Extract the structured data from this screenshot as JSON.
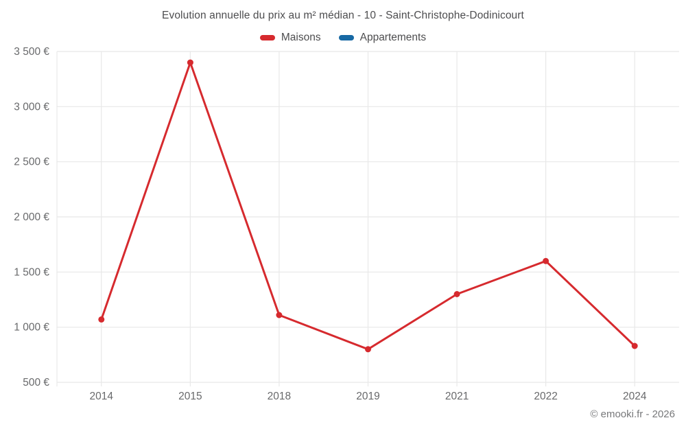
{
  "header": {
    "title": "Evolution annuelle du prix au m² médian - 10 - Saint-Christophe-Dodinicourt"
  },
  "legend": {
    "items": [
      {
        "label": "Maisons",
        "color": "#d62a2e"
      },
      {
        "label": "Appartements",
        "color": "#1769a4"
      }
    ]
  },
  "chart_data": {
    "type": "line",
    "title": "Evolution annuelle du prix au m² médian - 10 - Saint-Christophe-Dodinicourt",
    "categories": [
      "2014",
      "2015",
      "2018",
      "2019",
      "2021",
      "2022",
      "2024"
    ],
    "series": [
      {
        "name": "Maisons",
        "color": "#d62a2e",
        "values": [
          1070,
          3400,
          1110,
          800,
          1300,
          1600,
          830
        ]
      },
      {
        "name": "Appartements",
        "color": "#1769a4",
        "values": []
      }
    ],
    "xlabel": "",
    "ylabel": "",
    "ylim": [
      500,
      3500
    ],
    "ytick_step": 500,
    "ytick_labels": [
      "500 €",
      "1 000 €",
      "1 500 €",
      "2 000 €",
      "2 500 €",
      "3 000 €",
      "3 500 €"
    ],
    "grid": true,
    "legend_position": "top",
    "grid_color": "#e8e8e8",
    "tick_label_color": "#68696b"
  },
  "footer": {
    "credit": "© emooki.fr - 2026"
  }
}
